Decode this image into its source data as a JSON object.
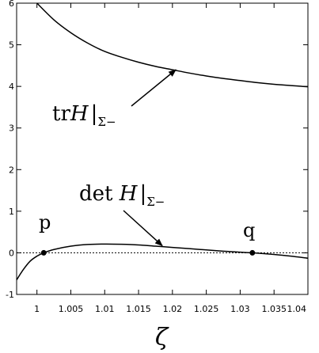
{
  "chart_data": {
    "type": "line",
    "title": "",
    "xlabel": "ζ",
    "ylabel": "",
    "xlim": [
      0.997,
      1.04
    ],
    "ylim": [
      -1,
      6
    ],
    "x_ticks": [
      1,
      1.005,
      1.01,
      1.015,
      1.02,
      1.025,
      1.03,
      1.035,
      1.04
    ],
    "x_tick_labels": [
      "1",
      "1.005",
      "1.01",
      "1.015",
      "1.02",
      "1.025",
      "1.03",
      "1.035",
      "1.04"
    ],
    "y_ticks": [
      -1,
      0,
      1,
      2,
      3,
      4,
      5,
      6
    ],
    "y_tick_labels": [
      "-1",
      "0",
      "1",
      "2",
      "3",
      "4",
      "5",
      "6"
    ],
    "grid": false,
    "legend": "none",
    "series": [
      {
        "x": [
          1.0,
          1.0025,
          1.005,
          1.0075,
          1.01,
          1.0125,
          1.015,
          1.0175,
          1.02,
          1.0225,
          1.025,
          1.0275,
          1.03,
          1.0325,
          1.035,
          1.0375,
          1.04
        ],
        "y": [
          6.0,
          5.6,
          5.29,
          5.04,
          4.84,
          4.7,
          4.58,
          4.48,
          4.4,
          4.32,
          4.25,
          4.19,
          4.14,
          4.09,
          4.05,
          4.02,
          3.99
        ]
      },
      {
        "x": [
          0.997,
          0.998,
          0.999,
          1.0,
          1.001,
          1.0025,
          1.005,
          1.0075,
          1.01,
          1.0125,
          1.015,
          1.0175,
          1.02,
          1.0225,
          1.025,
          1.0275,
          1.03,
          1.0318,
          1.035,
          1.0375,
          1.04
        ],
        "y": [
          -0.65,
          -0.4,
          -0.2,
          -0.08,
          0.0,
          0.08,
          0.16,
          0.2,
          0.21,
          0.205,
          0.19,
          0.16,
          0.13,
          0.1,
          0.07,
          0.04,
          0.015,
          0.0,
          -0.04,
          -0.08,
          -0.13
        ]
      }
    ],
    "reference_lines": [
      {
        "axis": "y",
        "value": 0,
        "style": "dotted"
      }
    ],
    "points": [
      {
        "label": "p",
        "x": 1.001,
        "y": 0
      },
      {
        "label": "q",
        "x": 1.0318,
        "y": 0
      }
    ],
    "annotations": [
      {
        "id": "tr",
        "text_main": "tr",
        "text_script": "H",
        "text_sub": "Σ−",
        "arrow_to": [
          1.0205,
          4.4
        ]
      },
      {
        "id": "det",
        "text_main": "det ",
        "text_script": "H",
        "text_sub": "Σ−",
        "arrow_to": [
          1.0185,
          0.17
        ]
      }
    ]
  }
}
